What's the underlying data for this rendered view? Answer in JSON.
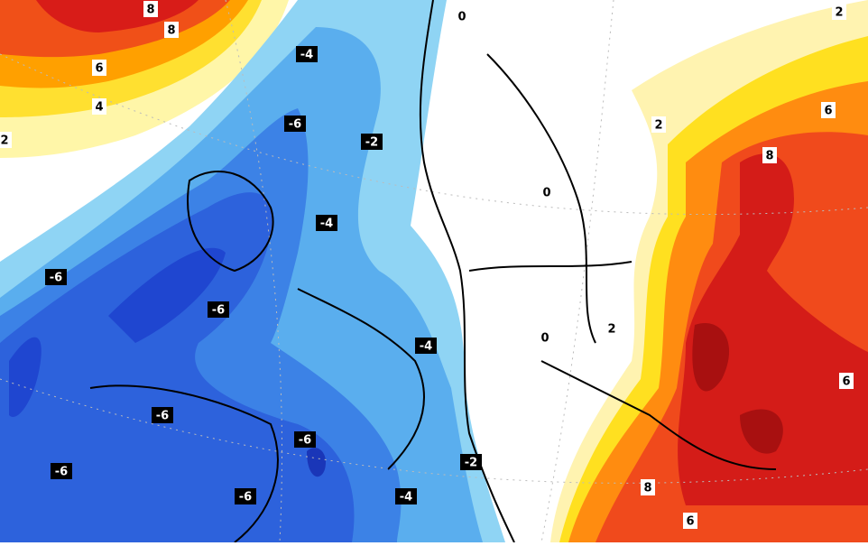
{
  "contour_labels": [
    "8",
    "8",
    "6",
    "4",
    "2",
    "-4",
    "-6",
    "-2",
    "-4",
    "-6",
    "-6",
    "-4",
    "-6",
    "-6",
    "-6",
    "-6",
    "-2",
    "-4",
    "0",
    "0",
    "0",
    "2",
    "2",
    "2",
    "6",
    "8",
    "6",
    "8",
    "6"
  ]
}
